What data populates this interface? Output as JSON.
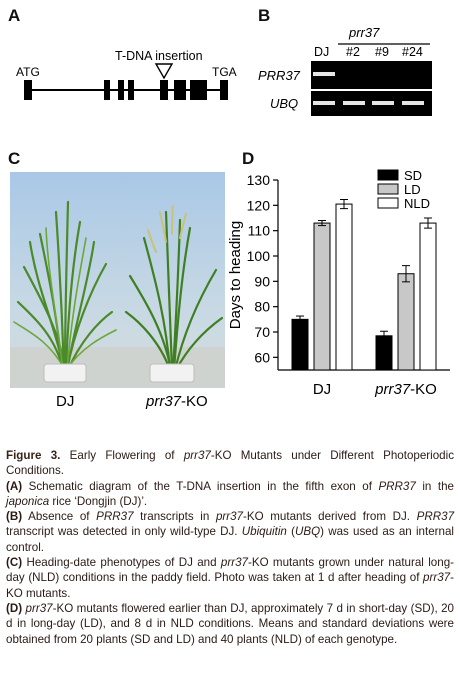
{
  "panels": {
    "a": {
      "letter": "A",
      "atg": "ATG",
      "tga": "TGA",
      "insertion": "T-DNA insertion"
    },
    "b": {
      "letter": "B",
      "group_label": "prr37",
      "lanes": [
        "DJ",
        "#2",
        "#9",
        "#24"
      ],
      "rows": [
        "PRR37",
        "UBQ"
      ]
    },
    "c": {
      "letter": "C",
      "labels": [
        "DJ",
        "prr37-KO"
      ]
    },
    "d": {
      "letter": "D"
    }
  },
  "chart_data": {
    "type": "bar",
    "ylabel": "Days to heading",
    "ylim": [
      55,
      130
    ],
    "yticks": [
      60,
      70,
      80,
      90,
      100,
      110,
      120,
      130
    ],
    "categories": [
      "DJ",
      "prr37-KO"
    ],
    "series": [
      {
        "name": "SD",
        "values": [
          75,
          68.5
        ],
        "errors": [
          1.3,
          1.8
        ],
        "color": "#000000"
      },
      {
        "name": "LD",
        "values": [
          113,
          93
        ],
        "errors": [
          1.0,
          3.2
        ],
        "color": "#c8c8c8"
      },
      {
        "name": "NLD",
        "values": [
          120.5,
          113
        ],
        "errors": [
          1.8,
          2.0
        ],
        "color": "#ffffff"
      }
    ],
    "legend_position": "top-right"
  },
  "caption": {
    "title_prefix": "Figure  3.",
    "title_1": " Early Flowering of ",
    "title_it": "prr37",
    "title_2": "-KO Mutants under Different Photoperiodic Conditions.",
    "a_label": "(A)",
    "a_1": " Schematic diagram of the T-DNA insertion in the fifth exon of ",
    "a_it1": "PRR37",
    "a_2": " in the ",
    "a_it2": "japonica",
    "a_3": " rice ‘Dongjin (DJ)’.",
    "b_label": "(B)",
    "b_1": " Absence of ",
    "b_it1": "PRR37",
    "b_2": " transcripts in ",
    "b_it2": "prr37",
    "b_3": "-KO mutants derived from DJ. ",
    "b_it3": "PRR37",
    "b_4": " transcript was detected in only wild-type DJ. ",
    "b_it4": "Ubiquitin",
    "b_5": " (",
    "b_it5": "UBQ",
    "b_6": ") was used as an internal control.",
    "c_label": "(C)",
    "c_1": " Heading-date phenotypes of DJ and ",
    "c_it1": "prr37",
    "c_2": "-KO mutants grown under natural long-day (NLD) conditions in the paddy field. Photo was taken at 1 d after heading of ",
    "c_it2": "prr37",
    "c_3": "-KO mutants.",
    "d_label": "(D)",
    "d_it1": "prr37",
    "d_1": "-KO mutants flowered earlier than DJ, approximately 7 d in short-day (SD), 20 d in long-day (LD), and 8 d in NLD conditions. Means and standard deviations were obtained from 20 plants (SD and LD) and 40 plants (NLD) of each genotype."
  }
}
